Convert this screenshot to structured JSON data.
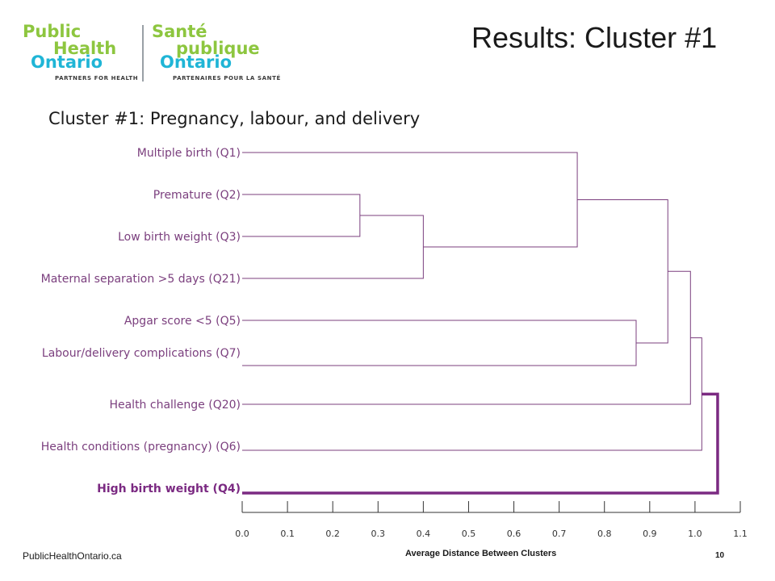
{
  "logo": {
    "en_line1": "Public",
    "en_line2": "Health",
    "en_line3": "Ontario",
    "fr_line1": "Santé",
    "fr_line2": "publique",
    "fr_line3": "Ontario",
    "tagline_en": "PARTNERS FOR HEALTH",
    "tagline_fr": "PARTENAIRES POUR LA SANTÉ",
    "colors": {
      "green": "#8dc63f",
      "blue": "#1fb5d6"
    }
  },
  "header": {
    "title": "Results: Cluster #1"
  },
  "subtitle": "Cluster #1: Pregnancy, labour, and delivery",
  "dendrogram": {
    "leaves": [
      {
        "label": "Multiple birth (Q1)"
      },
      {
        "label": "Premature (Q2)"
      },
      {
        "label": "Low birth weight (Q3)"
      },
      {
        "label": "Maternal separation >5 days (Q21)"
      },
      {
        "label": "Apgar score <5 (Q5)"
      },
      {
        "label": "Labour/delivery complications (Q7)"
      },
      {
        "label": "Health challenge (Q20)"
      },
      {
        "label": "Health conditions (pregnancy) (Q6)"
      },
      {
        "label": "High birth weight (Q4)",
        "highlight": true
      }
    ],
    "axis": {
      "title": "Average Distance Between Clusters",
      "min": 0.0,
      "max": 1.1,
      "ticks": [
        "0.0",
        "0.1",
        "0.2",
        "0.3",
        "0.4",
        "0.5",
        "0.6",
        "0.7",
        "0.8",
        "0.9",
        "1.0",
        "1.1"
      ]
    },
    "merges": [
      {
        "a": "Premature (Q2)",
        "b": "Low birth weight (Q3)",
        "distance": 0.26
      },
      {
        "a": "Q2+Q3",
        "b": "Maternal separation >5 days (Q21)",
        "distance": 0.4
      },
      {
        "a": "Multiple birth (Q1)",
        "b": "Q2+Q3+Q21",
        "distance": 0.74
      },
      {
        "a": "Apgar score <5 (Q5)",
        "b": "Labour/delivery complications (Q7)",
        "distance": 0.87
      },
      {
        "a": "Q1+Q2+Q3+Q21",
        "b": "Q5+Q7",
        "distance": 0.94
      },
      {
        "a": "Q1-Q7 group",
        "b": "Health challenge (Q20)",
        "distance": 0.99
      },
      {
        "a": "Q1-Q20 group",
        "b": "Health conditions (pregnancy) (Q6)",
        "distance": 1.015
      },
      {
        "a": "all-other",
        "b": "High birth weight (Q4)",
        "distance": 1.05,
        "highlight": true
      }
    ],
    "colors": {
      "line": "#7b3f7e",
      "highlight": "#7b2a82",
      "axis": "#333333"
    }
  },
  "footer": {
    "url": "PublicHealthOntario.ca",
    "page": "10"
  }
}
